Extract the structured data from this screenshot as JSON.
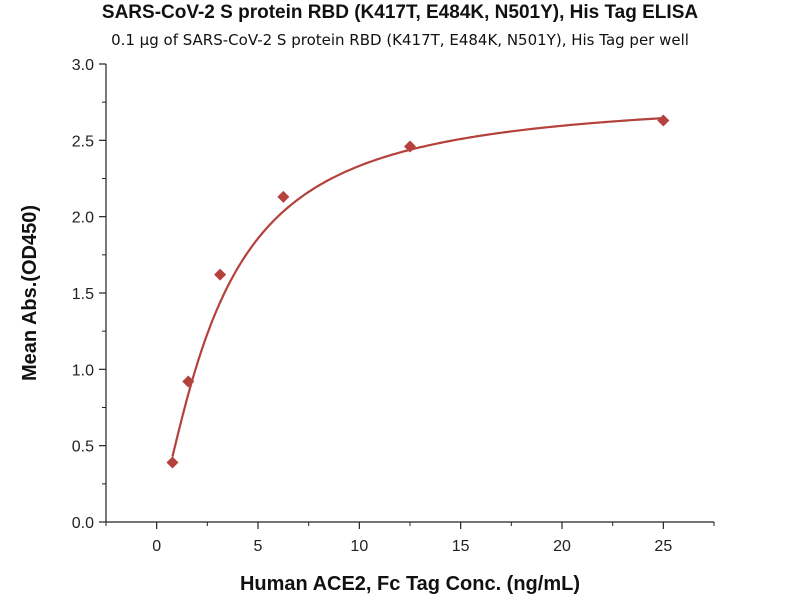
{
  "chart_data": {
    "type": "scatter",
    "title": "SARS-CoV-2 S protein RBD (K417T, E484K, N501Y), His Tag ELISA",
    "subtitle": "0.1 μg of SARS-CoV-2 S protein RBD (K417T, E484K, N501Y), His Tag per well",
    "xlabel": "Human ACE2, Fc Tag Conc. (ng/mL)",
    "ylabel": "Mean Abs.(OD450)",
    "xlim": [
      -2.5,
      27.5
    ],
    "ylim": [
      0,
      3.0
    ],
    "xticks": [
      0,
      5,
      10,
      15,
      20,
      25
    ],
    "yticks": [
      0.0,
      0.5,
      1.0,
      1.5,
      2.0,
      2.5,
      3.0
    ],
    "xtick_labels": [
      "0",
      "5",
      "10",
      "15",
      "20",
      "25"
    ],
    "ytick_labels": [
      "0.0",
      "0.5",
      "1.0",
      "1.5",
      "2.0",
      "2.5",
      "3.0"
    ],
    "grid": false,
    "series": [
      {
        "x": [
          0.78,
          1.56,
          3.13,
          6.25,
          12.5,
          25
        ],
        "y": [
          0.39,
          0.92,
          1.62,
          2.13,
          2.46,
          2.63
        ],
        "marker": "diamond",
        "color": "#b5413c",
        "fit": "four-parameter logistic"
      }
    ]
  }
}
